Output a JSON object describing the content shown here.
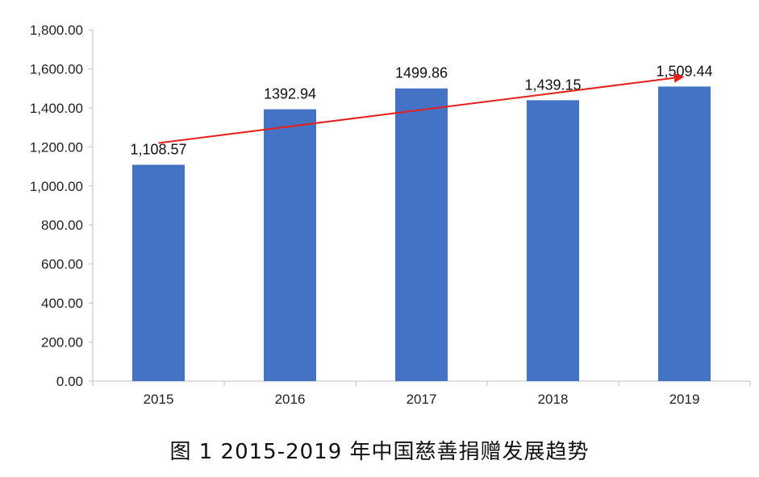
{
  "chart_data": {
    "type": "bar",
    "categories": [
      "2015",
      "2016",
      "2017",
      "2018",
      "2019"
    ],
    "values": [
      1108.57,
      1392.94,
      1499.86,
      1439.15,
      1509.44
    ],
    "data_labels": [
      "1,108.57",
      "1392.94",
      "1499.86",
      "1,439.15",
      "1,509.44"
    ],
    "y_ticks": [
      "0.00",
      "200.00",
      "400.00",
      "600.00",
      "800.00",
      "1,000.00",
      "1,200.00",
      "1,400.00",
      "1,600.00",
      "1,800.00"
    ],
    "ylim": [
      0,
      1800
    ],
    "grid": false,
    "legend": "none",
    "trend_arrow": {
      "from_value": 1220,
      "to_value": 1560,
      "from_category": "2015",
      "to_category": "2019"
    },
    "colors": {
      "bar": "#4472C4",
      "arrow": "#E8201A",
      "axis": "#bfbfbf"
    }
  },
  "caption": "图 1 2015-2019 年中国慈善捐赠发展趋势"
}
